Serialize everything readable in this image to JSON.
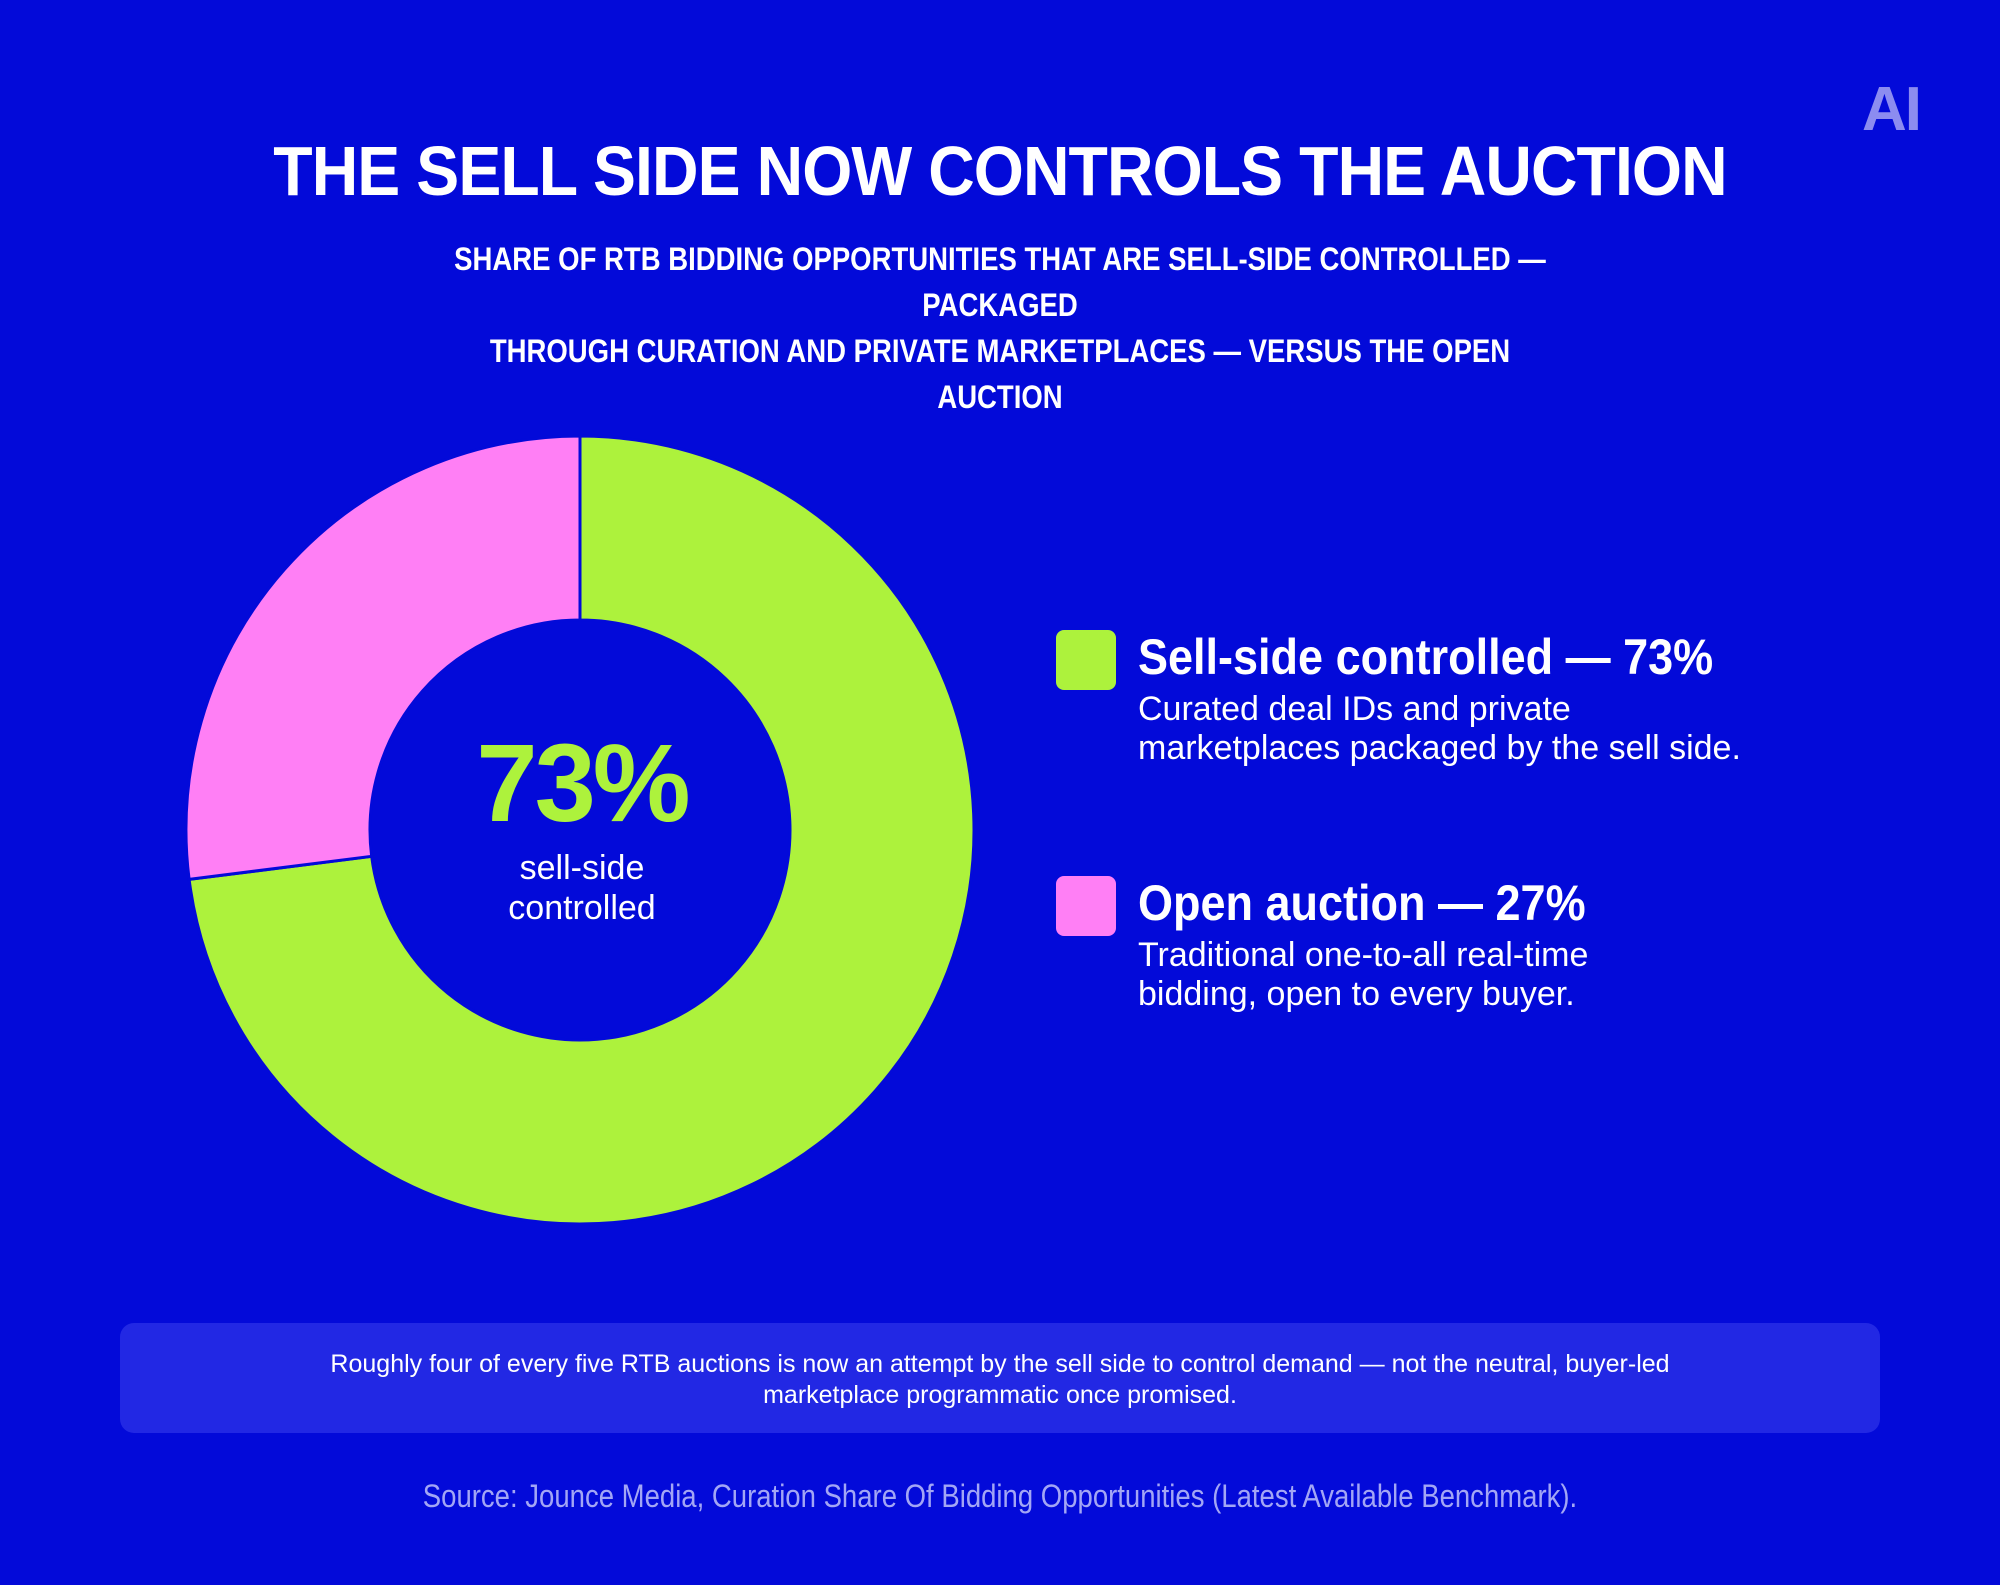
{
  "brand": {
    "logo_text": "AI",
    "background": "#030ad9"
  },
  "header": {
    "title": "THE SELL SIDE NOW CONTROLS THE AUCTION",
    "subtitle_line1": "SHARE OF RTB BIDDING OPPORTUNITIES THAT ARE SELL-SIDE CONTROLLED — PACKAGED",
    "subtitle_line2": "THROUGH CURATION AND PRIVATE MARKETPLACES — VERSUS THE OPEN AUCTION"
  },
  "chart_data": {
    "type": "pie",
    "style": "donut",
    "slices": [
      {
        "label": "Sell-side controlled",
        "value": 73,
        "color": "#adf23c"
      },
      {
        "label": "Open auction",
        "value": 27,
        "color": "#ff7ff5"
      }
    ],
    "center": {
      "value_text": "73%",
      "label_line1": "sell-side",
      "label_line2": "controlled"
    },
    "legend_position": "right"
  },
  "legend": [
    {
      "title": "Sell-side controlled — 73%",
      "desc_line1": "Curated deal IDs and private",
      "desc_line2": "marketplaces packaged by the sell side.",
      "color": "#adf23c"
    },
    {
      "title": "Open auction — 27%",
      "desc_line1": "Traditional one-to-all real-time",
      "desc_line2": "bidding, open to every buyer.",
      "color": "#ff7ff5"
    }
  ],
  "callout": {
    "line1": "Roughly four of every five RTB auctions is now an attempt by the sell side to control demand — not the neutral, buyer-led",
    "line2": "marketplace programmatic once promised."
  },
  "source": "Source: Jounce Media, Curation Share Of Bidding Opportunities (Latest Available Benchmark)."
}
